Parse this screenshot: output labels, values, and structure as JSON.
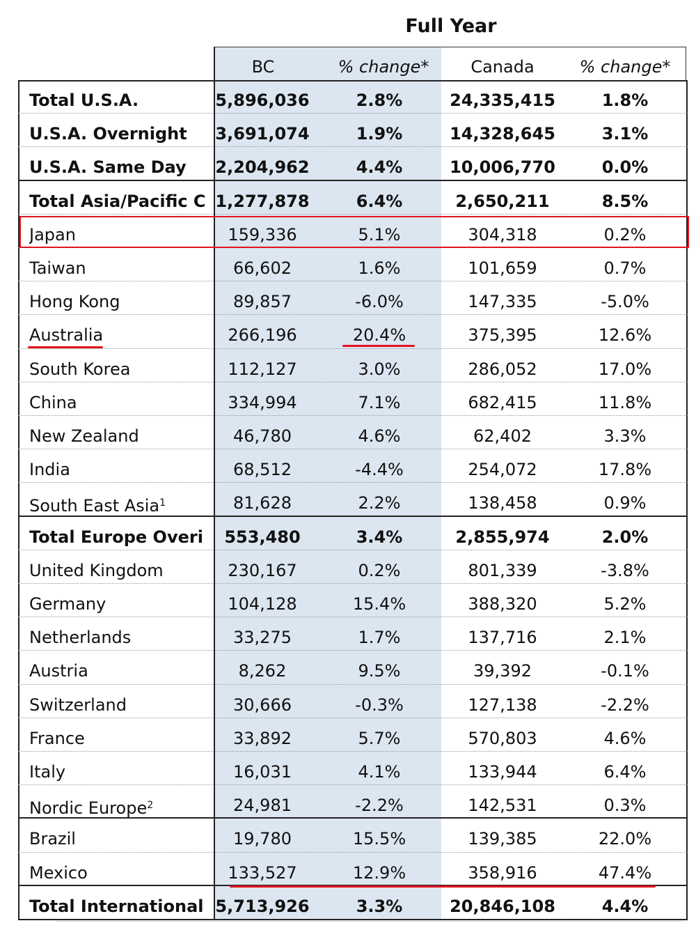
{
  "title": "Full Year",
  "headers": [
    "BC",
    "% change*",
    "Canada",
    "% change*"
  ],
  "rows": [
    {
      "label": "Total U.S.A.",
      "bc": "5,896,036",
      "bc_change": "2.8%",
      "canada": "24,335,415",
      "canada_change": "1.8%",
      "bold": true
    },
    {
      "label": "U.S.A. Overnight",
      "bc": "3,691,074",
      "bc_change": "1.9%",
      "canada": "14,328,645",
      "canada_change": "3.1%",
      "bold": true
    },
    {
      "label": "U.S.A. Same Day",
      "bc": "2,204,962",
      "bc_change": "4.4%",
      "canada": "10,006,770",
      "canada_change": "0.0%",
      "bold": true
    },
    {
      "label": "Total Asia/Pacific C",
      "bc": "1,277,878",
      "bc_change": "6.4%",
      "canada": "2,650,211",
      "canada_change": "8.5%",
      "bold": true
    },
    {
      "label": "Japan",
      "bc": "159,336",
      "bc_change": "5.1%",
      "canada": "304,318",
      "canada_change": "0.2%",
      "bold": false
    },
    {
      "label": "Taiwan",
      "bc": "66,602",
      "bc_change": "1.6%",
      "canada": "101,659",
      "canada_change": "0.7%",
      "bold": false
    },
    {
      "label": "Hong Kong",
      "bc": "89,857",
      "bc_change": "-6.0%",
      "canada": "147,335",
      "canada_change": "-5.0%",
      "bold": false
    },
    {
      "label": "Australia",
      "bc": "266,196",
      "bc_change": "20.4%",
      "canada": "375,395",
      "canada_change": "12.6%",
      "bold": false
    },
    {
      "label": "South Korea",
      "bc": "112,127",
      "bc_change": "3.0%",
      "canada": "286,052",
      "canada_change": "17.0%",
      "bold": false
    },
    {
      "label": "China",
      "bc": "334,994",
      "bc_change": "7.1%",
      "canada": "682,415",
      "canada_change": "11.8%",
      "bold": false
    },
    {
      "label": "New Zealand",
      "bc": "46,780",
      "bc_change": "4.6%",
      "canada": "62,402",
      "canada_change": "3.3%",
      "bold": false
    },
    {
      "label": "India",
      "bc": "68,512",
      "bc_change": "-4.4%",
      "canada": "254,072",
      "canada_change": "17.8%",
      "bold": false
    },
    {
      "label": "South East Asia",
      "footnote": "1",
      "bc": "81,628",
      "bc_change": "2.2%",
      "canada": "138,458",
      "canada_change": "0.9%",
      "bold": false
    },
    {
      "label": "Total Europe Overi",
      "bc": "553,480",
      "bc_change": "3.4%",
      "canada": "2,855,974",
      "canada_change": "2.0%",
      "bold": true
    },
    {
      "label": "United Kingdom",
      "bc": "230,167",
      "bc_change": "0.2%",
      "canada": "801,339",
      "canada_change": "-3.8%",
      "bold": false
    },
    {
      "label": "Germany",
      "bc": "104,128",
      "bc_change": "15.4%",
      "canada": "388,320",
      "canada_change": "5.2%",
      "bold": false
    },
    {
      "label": "Netherlands",
      "bc": "33,275",
      "bc_change": "1.7%",
      "canada": "137,716",
      "canada_change": "2.1%",
      "bold": false
    },
    {
      "label": "Austria",
      "bc": "8,262",
      "bc_change": "9.5%",
      "canada": "39,392",
      "canada_change": "-0.1%",
      "bold": false
    },
    {
      "label": "Switzerland",
      "bc": "30,666",
      "bc_change": "-0.3%",
      "canada": "127,138",
      "canada_change": "-2.2%",
      "bold": false
    },
    {
      "label": "France",
      "bc": "33,892",
      "bc_change": "5.7%",
      "canada": "570,803",
      "canada_change": "4.6%",
      "bold": false
    },
    {
      "label": "Italy",
      "bc": "16,031",
      "bc_change": "4.1%",
      "canada": "133,944",
      "canada_change": "6.4%",
      "bold": false
    },
    {
      "label": "Nordic Europe",
      "footnote": "2",
      "bc": "24,981",
      "bc_change": "-2.2%",
      "canada": "142,531",
      "canada_change": "0.3%",
      "bold": false
    },
    {
      "label": "Brazil",
      "bc": "19,780",
      "bc_change": "15.5%",
      "canada": "139,385",
      "canada_change": "22.0%",
      "bold": false
    },
    {
      "label": "Mexico",
      "bc": "133,527",
      "bc_change": "12.9%",
      "canada": "358,916",
      "canada_change": "47.4%",
      "bold": false
    },
    {
      "label": "Total International",
      "bc": "5,713,926",
      "bc_change": "3.3%",
      "canada": "20,846,108",
      "canada_change": "4.4%",
      "bold": true
    }
  ],
  "annotation_color": "#e0141e",
  "shade_color": "#dce6f1"
}
